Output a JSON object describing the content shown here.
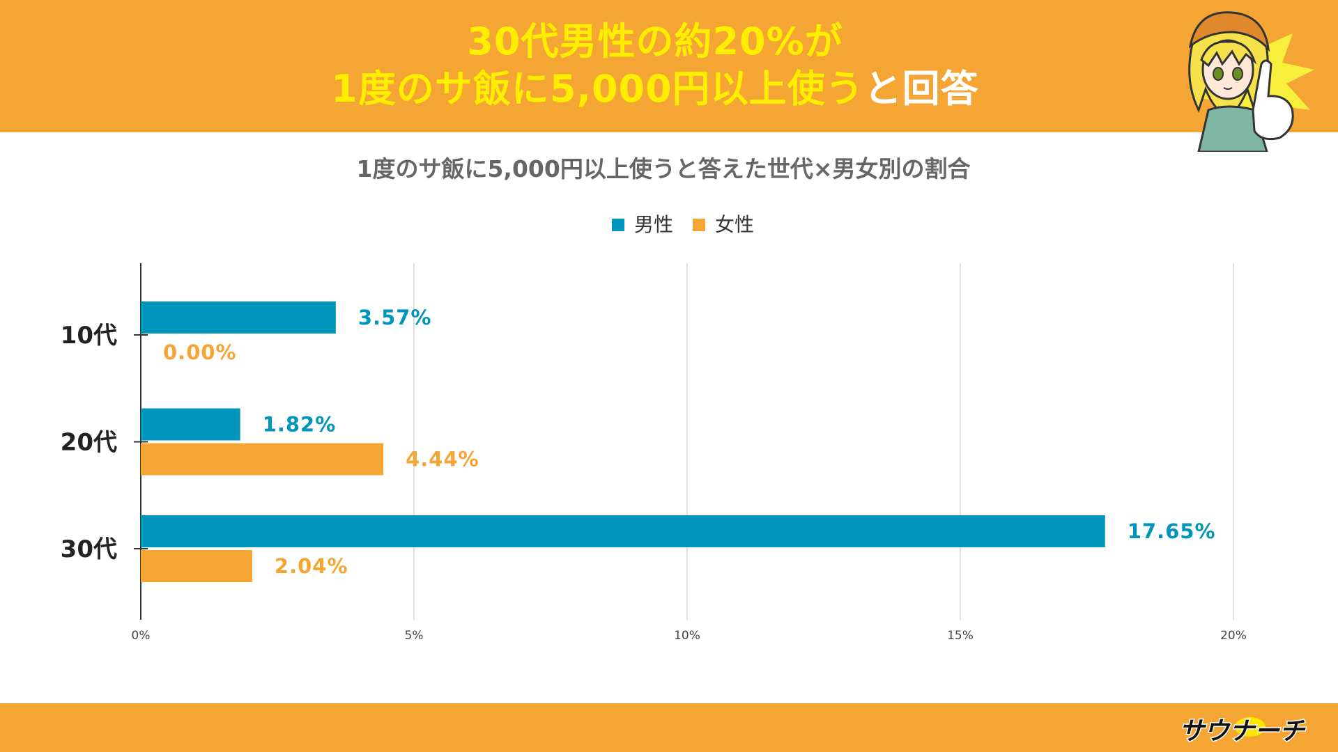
{
  "headline": {
    "line1": "30代男性の約20%が",
    "line2_yellow": "1度のサ飯に5,000円以上使う",
    "line2_white": "と回答"
  },
  "brand": {
    "logo_text": "サウナーチ"
  },
  "colors": {
    "header_bg": "#f4a533",
    "headline_yellow": "#ffee00",
    "male": "#0096bc",
    "female": "#f4a533"
  },
  "chart_data": {
    "type": "bar",
    "orientation": "horizontal",
    "title": "1度のサ飯に5,000円以上使うと答えた世代×男女別の割合",
    "categories": [
      "10代",
      "20代",
      "30代"
    ],
    "series": [
      {
        "name": "男性",
        "color": "#0096bc",
        "values": [
          3.57,
          1.82,
          17.65
        ],
        "labels": [
          "3.57%",
          "1.82%",
          "17.65%"
        ]
      },
      {
        "name": "女性",
        "color": "#f4a533",
        "values": [
          0.0,
          4.44,
          2.04
        ],
        "labels": [
          "0.00%",
          "4.44%",
          "2.04%"
        ]
      }
    ],
    "xlim": [
      0,
      20
    ],
    "x_ticks": [
      0,
      5,
      10,
      15,
      20
    ],
    "x_tick_labels": [
      "0%",
      "5%",
      "10%",
      "15%",
      "20%"
    ],
    "grid": true,
    "legend_position": "top-center"
  }
}
